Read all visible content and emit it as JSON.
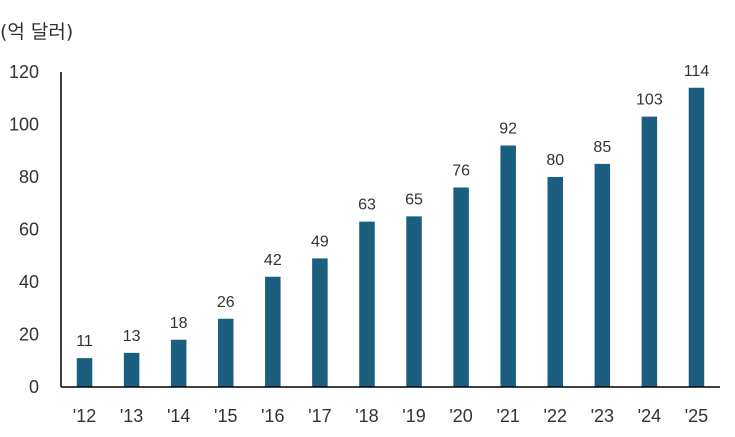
{
  "chart_data": {
    "type": "bar",
    "title": "",
    "xlabel": "",
    "ylabel": "(억 달러)",
    "categories": [
      "'12",
      "'13",
      "'14",
      "'15",
      "'16",
      "'17",
      "'18",
      "'19",
      "'20",
      "'21",
      "'22",
      "'23",
      "'24",
      "'25"
    ],
    "values": [
      11,
      13,
      18,
      26,
      42,
      49,
      63,
      65,
      76,
      92,
      80,
      85,
      103,
      114
    ],
    "ylim": [
      0,
      120
    ],
    "yticks": [
      0,
      20,
      40,
      60,
      80,
      100,
      120
    ],
    "grid": false,
    "legend": "none",
    "bar_color": "#1b5e80"
  }
}
